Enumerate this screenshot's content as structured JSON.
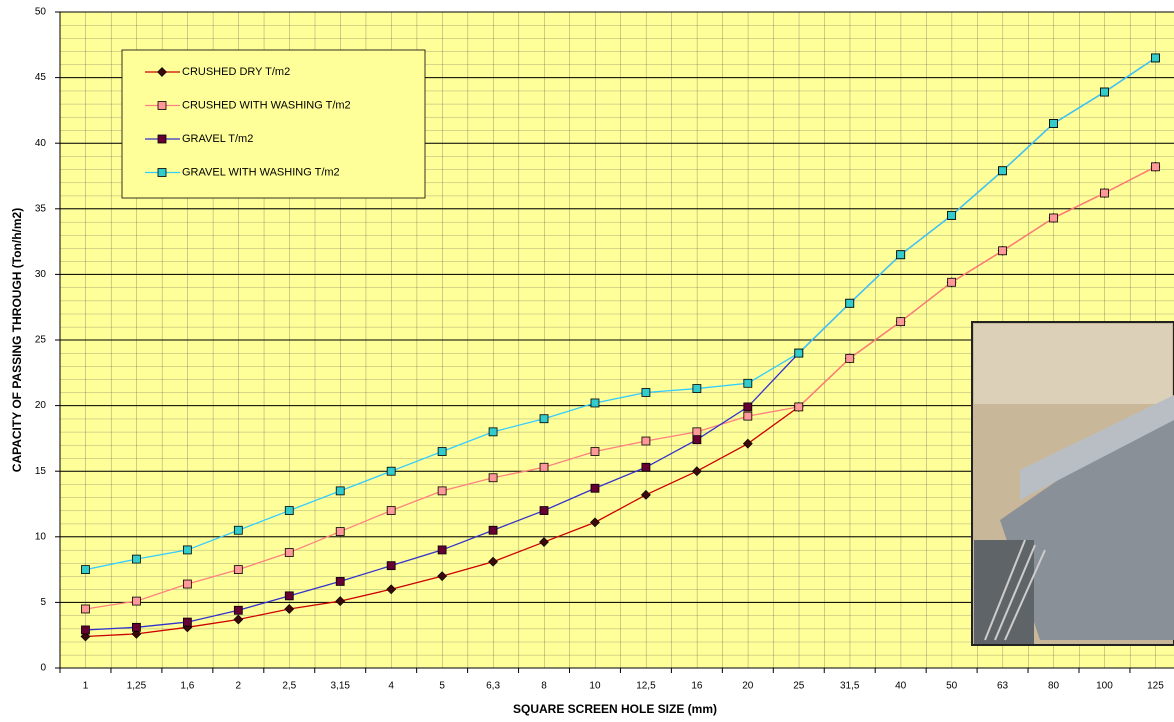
{
  "chart_data": {
    "type": "line",
    "x_label": "SQUARE SCREEN HOLE SIZE (mm)",
    "y_label": "CAPACITY OF PASSING THROUGH  (Ton/h/m2)",
    "categories": [
      "1",
      "1,25",
      "1,6",
      "2",
      "2,5",
      "3,15",
      "4",
      "5",
      "6,3",
      "8",
      "10",
      "12,5",
      "16",
      "20",
      "25",
      "31,5",
      "40",
      "50",
      "63",
      "80",
      "100",
      "125"
    ],
    "series": [
      {
        "name": "CRUSHED DRY  T/m2",
        "color": "#cc0000",
        "marker": "diamond",
        "marker_color": "#3a0a0a",
        "values": [
          2.4,
          2.6,
          3.1,
          3.7,
          4.5,
          5.1,
          6.0,
          7.0,
          8.1,
          9.6,
          11.1,
          13.2,
          15.0,
          17.1,
          19.9,
          23.6,
          26.4,
          29.4,
          31.8,
          34.3,
          36.2,
          38.2
        ]
      },
      {
        "name": "CRUSHED WITH WASHING T/m2",
        "color": "#ff8080",
        "marker": "square",
        "marker_color": "#ff9999",
        "values": [
          4.5,
          5.1,
          6.4,
          7.5,
          8.8,
          10.4,
          12.0,
          13.5,
          14.5,
          15.3,
          16.5,
          17.3,
          18.0,
          19.2,
          19.9,
          23.6,
          26.4,
          29.4,
          31.8,
          34.3,
          36.2,
          38.2
        ]
      },
      {
        "name": "GRAVEL  T/m2",
        "color": "#3333cc",
        "marker": "square",
        "marker_color": "#660033",
        "values": [
          2.9,
          3.1,
          3.5,
          4.4,
          5.5,
          6.6,
          7.8,
          9.0,
          10.5,
          12.0,
          13.7,
          15.3,
          17.4,
          19.9,
          24.0,
          27.8,
          31.5,
          34.5,
          37.9,
          41.5,
          43.9,
          46.5
        ]
      },
      {
        "name": "GRAVEL WITH WASHING   T/m2",
        "color": "#33ccff",
        "marker": "square",
        "marker_color": "#33cccc",
        "values": [
          7.5,
          8.3,
          9.0,
          10.5,
          12.0,
          13.5,
          15.0,
          16.5,
          18.0,
          19.0,
          20.2,
          21.0,
          21.3,
          21.7,
          24.0,
          27.8,
          31.5,
          34.5,
          37.9,
          41.5,
          43.9,
          46.5
        ]
      }
    ],
    "ylim": [
      0,
      50
    ],
    "yticks": [
      0,
      5,
      10,
      15,
      20,
      25,
      30,
      35,
      40,
      45,
      50
    ],
    "grid": true
  }
}
